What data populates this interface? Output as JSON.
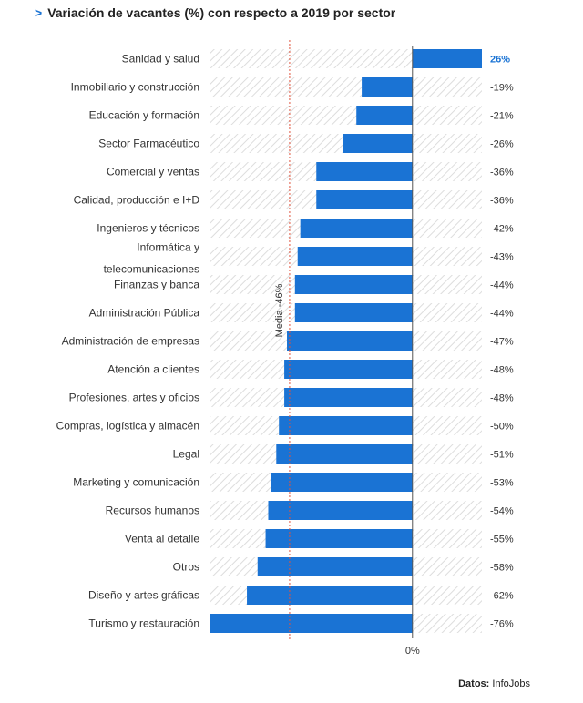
{
  "header": {
    "chevron": ">",
    "title": "Variación de vacantes (%) con respecto a 2019 por sector"
  },
  "source": {
    "label": "Datos:",
    "value": "InfoJobs"
  },
  "colors": {
    "bar": "#1a73d4",
    "stripe": "#dddddd",
    "highlight": "#1a73d4",
    "mean_line": "#e0533c",
    "text": "#333333"
  },
  "chart_data": {
    "type": "bar",
    "orientation": "horizontal",
    "title": "Variación de vacantes (%) con respecto a 2019 por sector",
    "categories": [
      [
        "Sanidad y salud"
      ],
      [
        "Inmobiliario y construcción"
      ],
      [
        "Educación y formación"
      ],
      [
        "Sector Farmacéutico"
      ],
      [
        "Comercial y ventas"
      ],
      [
        "Calidad, producción e I+D"
      ],
      [
        "Ingenieros y técnicos"
      ],
      [
        "Informática y",
        "telecomunicaciones"
      ],
      [
        "Finanzas y banca"
      ],
      [
        "Administración Pública"
      ],
      [
        "Administración de empresas"
      ],
      [
        "Atención a clientes"
      ],
      [
        "Profesiones, artes y oficios"
      ],
      [
        "Compras, logística y almacén"
      ],
      [
        "Legal"
      ],
      [
        "Marketing y comunicación"
      ],
      [
        "Recursos humanos"
      ],
      [
        "Venta al detalle"
      ],
      [
        "Otros"
      ],
      [
        "Diseño y artes gráficas"
      ],
      [
        "Turismo y restauración"
      ]
    ],
    "values": [
      26,
      -19,
      -21,
      -26,
      -36,
      -36,
      -42,
      -43,
      -44,
      -44,
      -47,
      -48,
      -48,
      -50,
      -51,
      -53,
      -54,
      -55,
      -58,
      -62,
      -76
    ],
    "value_labels": [
      "26%",
      "-19%",
      "-21%",
      "-26%",
      "-36%",
      "-36%",
      "-42%",
      "-43%",
      "-44%",
      "-44%",
      "-47%",
      "-48%",
      "-48%",
      "-50%",
      "-51%",
      "-53%",
      "-54%",
      "-55%",
      "-58%",
      "-62%",
      "-76%"
    ],
    "xlim": [
      -76,
      26
    ],
    "zero_label": "0%",
    "reference_line": {
      "value": -46,
      "label": "Media -46%"
    },
    "grid": false
  }
}
